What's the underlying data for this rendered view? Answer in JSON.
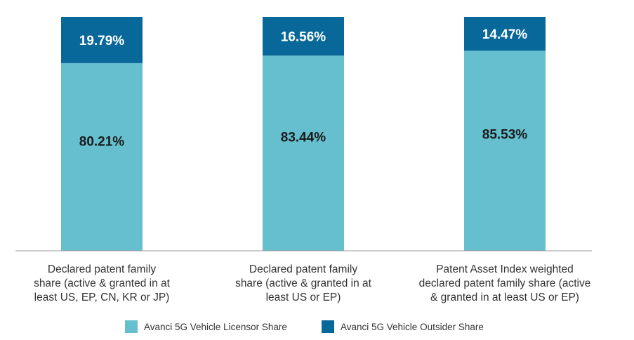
{
  "chart_data": {
    "type": "bar",
    "stacked": true,
    "categories": [
      "Declared patent family share (active & granted in at least US, EP, CN, KR or JP)",
      "Declared patent family share (active & granted in at least US or EP)",
      "Patent Asset Index weighted declared patent family share (active & granted in at least US or EP)"
    ],
    "category_lines": [
      [
        "Declared patent family",
        "share (active & granted in at",
        "least US, EP, CN, KR or JP)"
      ],
      [
        "Declared patent family",
        "share (active & granted in at",
        "least US or EP)"
      ],
      [
        "Patent Asset Index weighted",
        "declared patent family share (active",
        "& granted in at least US or EP)"
      ]
    ],
    "series": [
      {
        "name": "Avanci 5G Vehicle Licensor Share",
        "color": "#66BFCF",
        "label_color": "#1a1a1a",
        "values": [
          80.21,
          83.44,
          85.53
        ],
        "labels": [
          "80.21%",
          "83.44%",
          "85.53%"
        ]
      },
      {
        "name": "Avanci 5G Vehicle Outsider Share",
        "color": "#08689A",
        "label_color": "#ffffff",
        "values": [
          19.79,
          16.56,
          14.47
        ],
        "labels": [
          "19.79%",
          "16.56%",
          "14.47%"
        ]
      }
    ],
    "ylim": [
      0,
      100
    ],
    "grid": false,
    "legend_position": "bottom",
    "title": "",
    "xlabel": "",
    "ylabel": ""
  }
}
